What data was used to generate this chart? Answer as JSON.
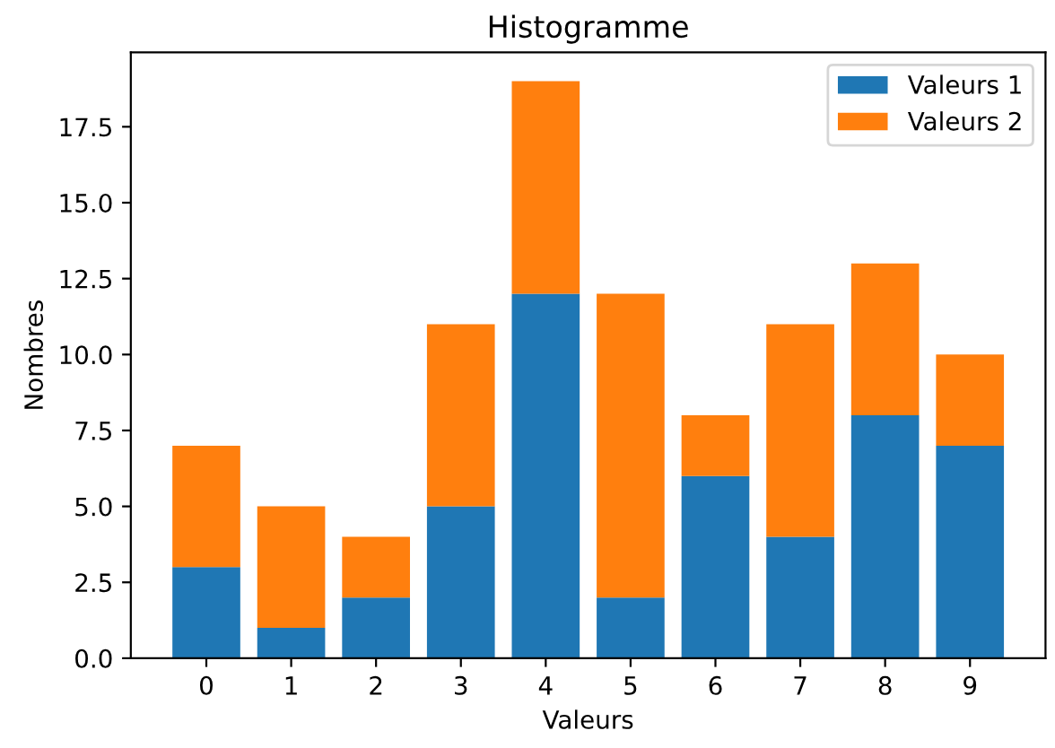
{
  "chart_data": {
    "type": "bar",
    "title": "Histogramme",
    "xlabel": "Valeurs",
    "ylabel": "Nombres",
    "categories": [
      "0",
      "1",
      "2",
      "3",
      "4",
      "5",
      "6",
      "7",
      "8",
      "9"
    ],
    "stacked": true,
    "series": [
      {
        "name": "Valeurs 1",
        "color": "#1f77b4",
        "values": [
          3,
          1,
          2,
          5,
          12,
          2,
          6,
          4,
          8,
          7
        ]
      },
      {
        "name": "Valeurs 2",
        "color": "#ff7f0e",
        "values": [
          4,
          4,
          2,
          6,
          7,
          10,
          2,
          7,
          5,
          3
        ]
      }
    ],
    "ylim": [
      0,
      19.95
    ],
    "yticks": [
      {
        "value": 0,
        "label": "0.0"
      },
      {
        "value": 2.5,
        "label": "2.5"
      },
      {
        "value": 5,
        "label": "5.0"
      },
      {
        "value": 7.5,
        "label": "7.5"
      },
      {
        "value": 10,
        "label": "10.0"
      },
      {
        "value": 12.5,
        "label": "12.5"
      },
      {
        "value": 15,
        "label": "15.0"
      },
      {
        "value": 17.5,
        "label": "17.5"
      }
    ],
    "legend": "top right",
    "grid": false
  }
}
